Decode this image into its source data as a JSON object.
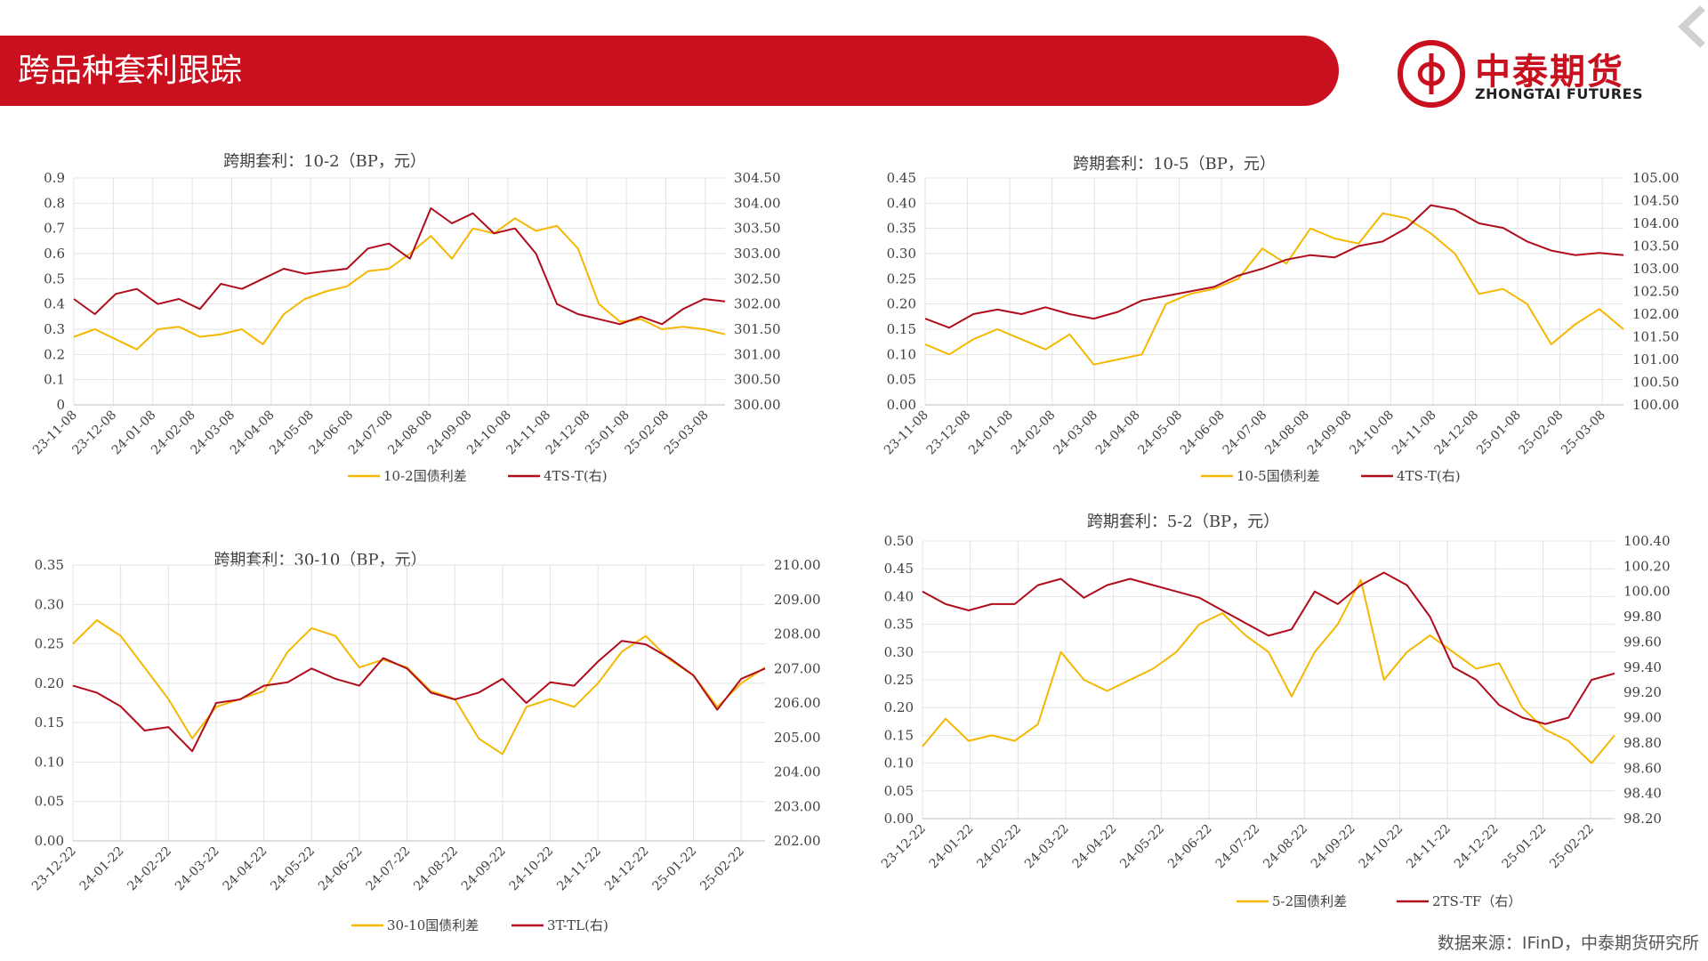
{
  "header": {
    "title": "跨品种套利跟踪",
    "logo_cn": "中泰期货",
    "logo_en": "ZHONGTAI FUTURES"
  },
  "footer": {
    "source": "数据来源：IFinD，中泰期货研究所"
  },
  "colors": {
    "brand": "#c8101e",
    "series_left": "#f5b700",
    "series_right": "#b00c1c"
  },
  "chart_data": [
    {
      "id": "c1",
      "type": "line",
      "title": "跨期套利：10-2（BP，元）",
      "x_ticks": [
        "23-11-08",
        "23-12-08",
        "24-01-08",
        "24-02-08",
        "24-03-08",
        "24-04-08",
        "24-05-08",
        "24-06-08",
        "24-07-08",
        "24-08-08",
        "24-09-08",
        "24-10-08",
        "24-11-08",
        "24-12-08",
        "25-01-08",
        "25-02-08",
        "25-03-08"
      ],
      "ylim_left": [
        0,
        0.9
      ],
      "yticks_left": [
        "0",
        "0.1",
        "0.2",
        "0.3",
        "0.4",
        "0.5",
        "0.6",
        "0.7",
        "0.8",
        "0.9"
      ],
      "ylim_right": [
        300,
        304.5
      ],
      "yticks_right": [
        "300.00",
        "300.50",
        "301.00",
        "301.50",
        "302.00",
        "302.50",
        "303.00",
        "303.50",
        "304.00",
        "304.50"
      ],
      "series": [
        {
          "name": "10-2国债利差",
          "axis": "left",
          "values": [
            0.27,
            0.3,
            0.26,
            0.22,
            0.3,
            0.31,
            0.27,
            0.28,
            0.3,
            0.24,
            0.36,
            0.42,
            0.45,
            0.47,
            0.53,
            0.54,
            0.6,
            0.67,
            0.58,
            0.7,
            0.68,
            0.74,
            0.69,
            0.71,
            0.62,
            0.4,
            0.33,
            0.34,
            0.3,
            0.31,
            0.3,
            0.28
          ]
        },
        {
          "name": "4TS-T(右)",
          "axis": "right",
          "values": [
            302.1,
            301.8,
            302.2,
            302.3,
            302.0,
            302.1,
            301.9,
            302.4,
            302.3,
            302.5,
            302.7,
            302.6,
            302.65,
            302.7,
            303.1,
            303.2,
            302.9,
            303.9,
            303.6,
            303.8,
            303.4,
            303.5,
            303.0,
            302.0,
            301.8,
            301.7,
            301.6,
            301.75,
            301.6,
            301.9,
            302.1,
            302.05
          ]
        }
      ]
    },
    {
      "id": "c2",
      "type": "line",
      "title": "跨期套利：10-5（BP，元）",
      "x_ticks": [
        "23-11-08",
        "23-12-08",
        "24-01-08",
        "24-02-08",
        "24-03-08",
        "24-04-08",
        "24-05-08",
        "24-06-08",
        "24-07-08",
        "24-08-08",
        "24-09-08",
        "24-10-08",
        "24-11-08",
        "24-12-08",
        "25-01-08",
        "25-02-08",
        "25-03-08"
      ],
      "ylim_left": [
        0,
        0.45
      ],
      "yticks_left": [
        "0.00",
        "0.05",
        "0.10",
        "0.15",
        "0.20",
        "0.25",
        "0.30",
        "0.35",
        "0.40",
        "0.45"
      ],
      "ylim_right": [
        100,
        105
      ],
      "yticks_right": [
        "100.00",
        "100.50",
        "101.00",
        "101.50",
        "102.00",
        "102.50",
        "103.00",
        "103.50",
        "104.00",
        "104.50",
        "105.00"
      ],
      "series": [
        {
          "name": "10-5国债利差",
          "axis": "left",
          "values": [
            0.12,
            0.1,
            0.13,
            0.15,
            0.13,
            0.11,
            0.14,
            0.08,
            0.09,
            0.1,
            0.2,
            0.22,
            0.23,
            0.25,
            0.31,
            0.28,
            0.35,
            0.33,
            0.32,
            0.38,
            0.37,
            0.34,
            0.3,
            0.22,
            0.23,
            0.2,
            0.12,
            0.16,
            0.19,
            0.15
          ]
        },
        {
          "name": "4TS-T(右)",
          "axis": "right",
          "values": [
            101.9,
            101.7,
            102.0,
            102.1,
            102.0,
            102.15,
            102.0,
            101.9,
            102.05,
            102.3,
            102.4,
            102.5,
            102.6,
            102.85,
            103.0,
            103.2,
            103.3,
            103.25,
            103.5,
            103.6,
            103.9,
            104.4,
            104.3,
            104.0,
            103.9,
            103.6,
            103.4,
            103.3,
            103.35,
            103.3
          ]
        }
      ]
    },
    {
      "id": "c3",
      "type": "line",
      "title": "跨期套利：30-10（BP，元）",
      "x_ticks": [
        "23-12-22",
        "24-01-22",
        "24-02-22",
        "24-03-22",
        "24-04-22",
        "24-05-22",
        "24-06-22",
        "24-07-22",
        "24-08-22",
        "24-09-22",
        "24-10-22",
        "24-11-22",
        "24-12-22",
        "25-01-22",
        "25-02-22"
      ],
      "ylim_left": [
        0,
        0.35
      ],
      "yticks_left": [
        "0.00",
        "0.05",
        "0.10",
        "0.15",
        "0.20",
        "0.25",
        "0.30",
        "0.35"
      ],
      "ylim_right": [
        202,
        210
      ],
      "yticks_right": [
        "202.00",
        "203.00",
        "204.00",
        "205.00",
        "206.00",
        "207.00",
        "208.00",
        "209.00",
        "210.00"
      ],
      "series": [
        {
          "name": "30-10国债利差",
          "axis": "left",
          "values": [
            0.25,
            0.28,
            0.26,
            0.22,
            0.18,
            0.13,
            0.17,
            0.18,
            0.19,
            0.24,
            0.27,
            0.26,
            0.22,
            0.23,
            0.22,
            0.19,
            0.18,
            0.13,
            0.11,
            0.17,
            0.18,
            0.17,
            0.2,
            0.24,
            0.26,
            0.23,
            0.21,
            0.17,
            0.2,
            0.22
          ]
        },
        {
          "name": "3T-TL(右)",
          "axis": "right",
          "values": [
            206.5,
            206.3,
            205.9,
            205.2,
            205.3,
            204.6,
            206.0,
            206.1,
            206.5,
            206.6,
            207.0,
            206.7,
            206.5,
            207.3,
            207.0,
            206.3,
            206.1,
            206.3,
            206.7,
            206.0,
            206.6,
            206.5,
            207.2,
            207.8,
            207.7,
            207.3,
            206.8,
            205.8,
            206.7,
            207.0
          ]
        }
      ]
    },
    {
      "id": "c4",
      "type": "line",
      "title": "跨期套利：5-2（BP，元）",
      "x_ticks": [
        "23-12-22",
        "24-01-22",
        "24-02-22",
        "24-03-22",
        "24-04-22",
        "24-05-22",
        "24-06-22",
        "24-07-22",
        "24-08-22",
        "24-09-22",
        "24-10-22",
        "24-11-22",
        "24-12-22",
        "25-01-22",
        "25-02-22"
      ],
      "ylim_left": [
        0,
        0.5
      ],
      "yticks_left": [
        "0.00",
        "0.05",
        "0.10",
        "0.15",
        "0.20",
        "0.25",
        "0.30",
        "0.35",
        "0.40",
        "0.45",
        "0.50"
      ],
      "ylim_right": [
        98.2,
        100.4
      ],
      "yticks_right": [
        "98.20",
        "98.40",
        "98.60",
        "98.80",
        "99.00",
        "99.20",
        "99.40",
        "99.60",
        "99.80",
        "100.00",
        "100.20",
        "100.40"
      ],
      "series": [
        {
          "name": "5-2国债利差",
          "axis": "left",
          "values": [
            0.13,
            0.18,
            0.14,
            0.15,
            0.14,
            0.17,
            0.3,
            0.25,
            0.23,
            0.25,
            0.27,
            0.3,
            0.35,
            0.37,
            0.33,
            0.3,
            0.22,
            0.3,
            0.35,
            0.43,
            0.25,
            0.3,
            0.33,
            0.3,
            0.27,
            0.28,
            0.2,
            0.16,
            0.14,
            0.1,
            0.15
          ]
        },
        {
          "name": "2TS-TF（右）",
          "axis": "right",
          "values": [
            100.0,
            99.9,
            99.85,
            99.9,
            99.9,
            100.05,
            100.1,
            99.95,
            100.05,
            100.1,
            100.05,
            100.0,
            99.95,
            99.85,
            99.75,
            99.65,
            99.7,
            100.0,
            99.9,
            100.05,
            100.15,
            100.05,
            99.8,
            99.4,
            99.3,
            99.1,
            99.0,
            98.95,
            99.0,
            99.3,
            99.35
          ]
        }
      ]
    }
  ]
}
